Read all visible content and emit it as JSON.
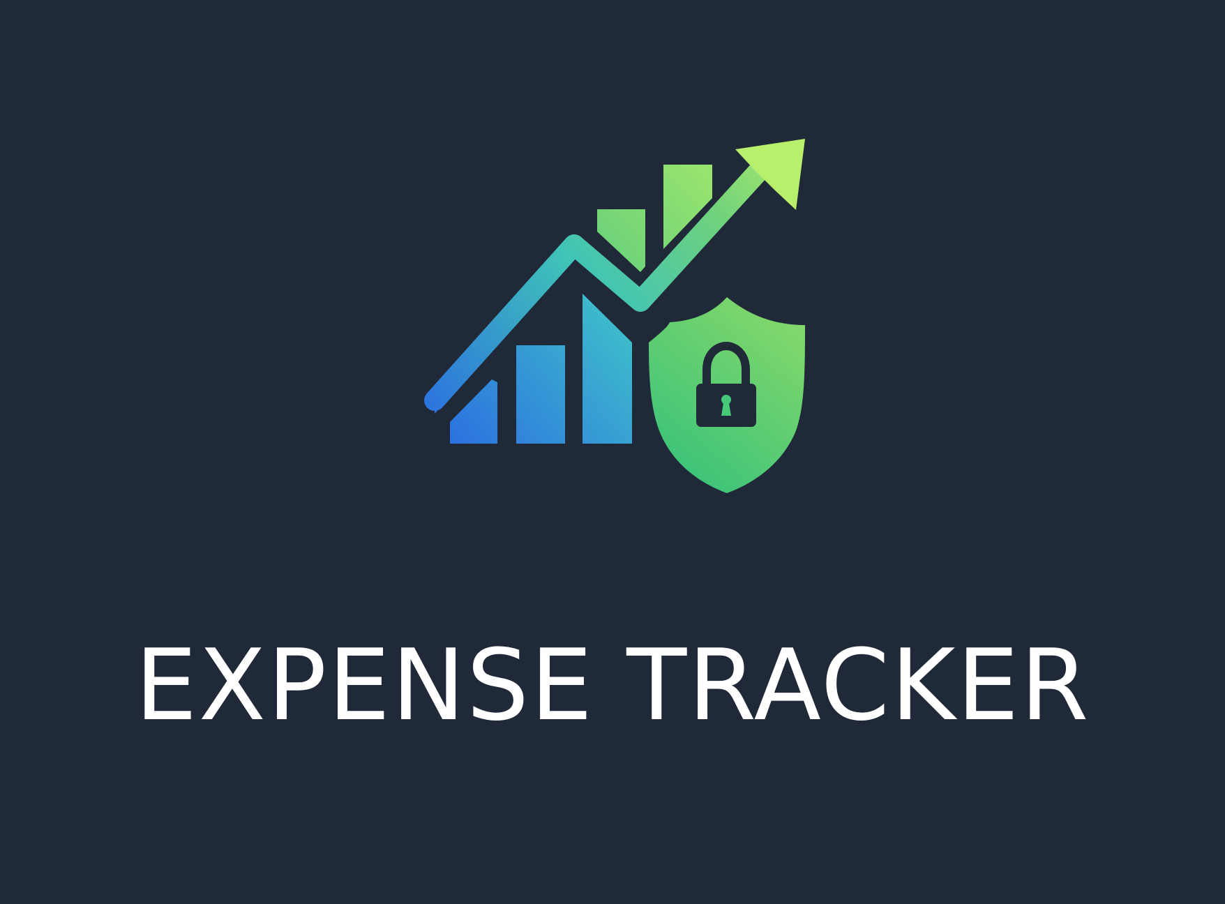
{
  "app": {
    "title": "EXPENSE TRACKER"
  },
  "logo": {
    "icons": [
      "growth-arrow-icon",
      "bar-chart-icon",
      "shield-icon",
      "lock-icon"
    ],
    "colors": {
      "background": "#202938",
      "blue": "#2B6FE0",
      "teal": "#3CC2CC",
      "green": "#47C97A",
      "lime": "#B8F06C",
      "lock": "#1F2937",
      "text": "#FFFFFF"
    }
  }
}
